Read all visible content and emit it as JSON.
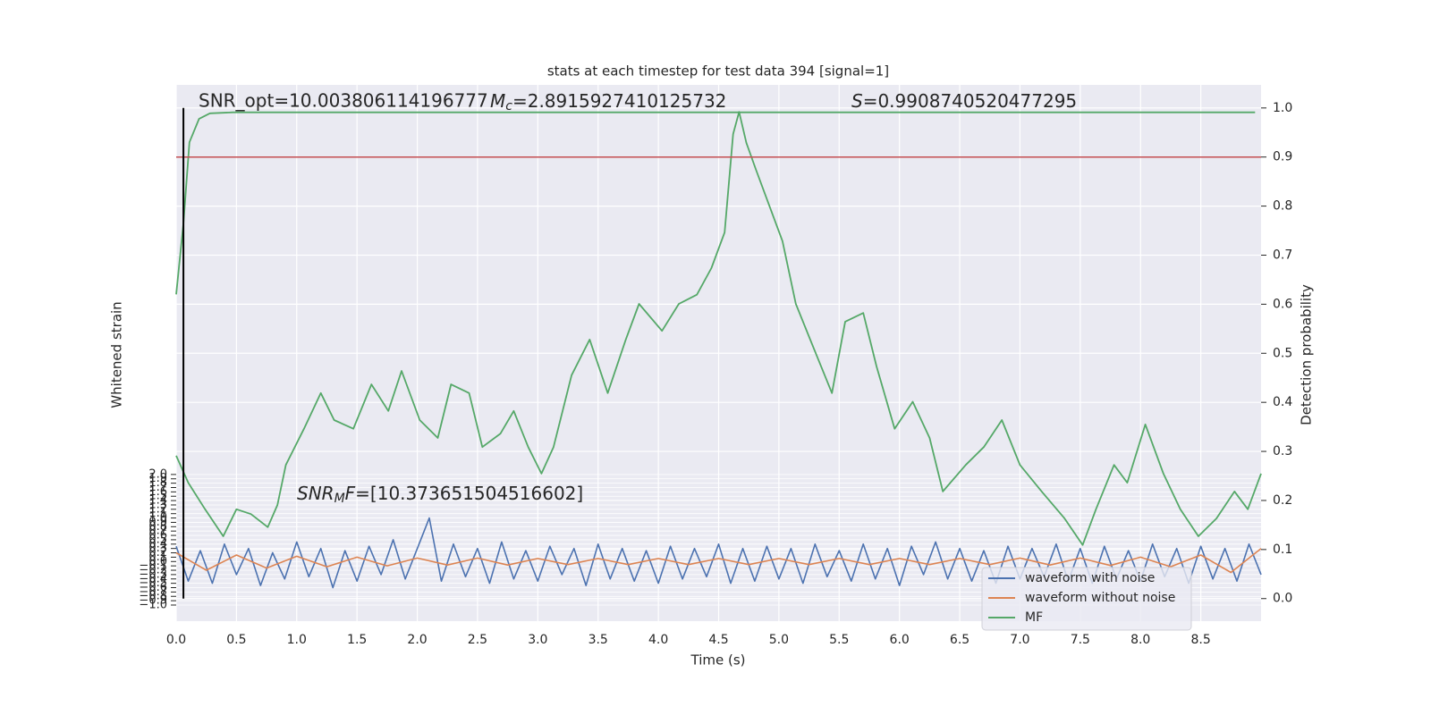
{
  "chart_data": {
    "type": "line",
    "title": "stats at each timestep for test data 394 [signal=1]",
    "xlabel": "Time (s)",
    "ylabel": "Whitened strain",
    "y2label": "Detection probability",
    "annotations": [
      {
        "text": "SNR_opt=10.003806114196777"
      },
      {
        "symbol": "M",
        "sub": "c",
        "text": "=2.8915927410125732"
      },
      {
        "symbol": "S",
        "text": "=0.9908740520477295"
      },
      {
        "symbol": "SNR",
        "sub": "M",
        "symbol2": "F",
        "text": "=[10.373651504516602]"
      }
    ],
    "xlim": [
      0,
      9.0
    ],
    "xticks": [
      {
        "value": 0,
        "label": "0.0"
      },
      0.5,
      {
        "value": 1,
        "label": "1.0"
      },
      1.5,
      {
        "value": 2,
        "label": "2.0"
      },
      2.5,
      {
        "value": 3,
        "label": "3.0"
      },
      3.5,
      {
        "value": 4,
        "label": "4.0"
      },
      4.5,
      {
        "value": 5,
        "label": "5.0"
      },
      5.5,
      {
        "value": 6,
        "label": "6.0"
      },
      6.5,
      {
        "value": 7,
        "label": "7.0"
      },
      7.5,
      {
        "value": 8,
        "label": "8.0"
      },
      8.5
    ],
    "ylim": [
      -1.37,
      10.95
    ],
    "yticks": [
      {
        "value": -1,
        "label": "−1.0"
      },
      {
        "value": -0.9,
        "label": "−0.9"
      },
      {
        "value": -0.8,
        "label": "−0.8"
      },
      {
        "value": -0.7,
        "label": "−0.7"
      },
      {
        "value": -0.6,
        "label": "−0.6"
      },
      {
        "value": -0.5,
        "label": "−0.5"
      },
      {
        "value": -0.4,
        "label": "−0.4"
      },
      {
        "value": -0.3,
        "label": "−0.3"
      },
      {
        "value": -0.2,
        "label": "−0.2"
      },
      {
        "value": -0.1,
        "label": "−0.1"
      },
      {
        "value": 0,
        "label": "0.0"
      },
      0.1,
      0.2,
      0.3,
      0.4,
      0.5,
      0.6,
      0.7,
      0.8,
      0.9,
      {
        "value": 1,
        "label": "1.0"
      },
      1.1,
      1.2,
      1.3,
      1.4,
      1.5,
      1.6,
      1.7,
      1.8,
      1.9,
      {
        "value": 2,
        "label": "2.0"
      }
    ],
    "y2lim": [
      -0.046,
      1.047
    ],
    "y2ticks": [
      {
        "value": 0,
        "label": "0.0"
      },
      0.1,
      0.2,
      0.3,
      0.4,
      0.5,
      0.6,
      0.7,
      0.8,
      0.9,
      {
        "value": 1,
        "label": "1.0"
      }
    ],
    "grid": true,
    "legend": "lower right",
    "threshold": {
      "value": 0.9,
      "color": "#c44e52"
    },
    "vline": {
      "x": 0.06,
      "color": "#000000"
    },
    "series": [
      {
        "name": "waveform with noise",
        "color": "#4c72b0",
        "x": [
          0,
          0.1,
          0.2,
          0.3,
          0.4,
          0.5,
          0.6,
          0.7,
          0.8,
          0.9,
          1.0,
          1.1,
          1.2,
          1.3,
          1.4,
          1.5,
          1.6,
          1.7,
          1.8,
          1.9,
          2.0,
          2.1,
          2.2,
          2.3,
          2.4,
          2.5,
          2.6,
          2.7,
          2.8,
          2.9,
          3.0,
          3.1,
          3.2,
          3.3,
          3.4,
          3.5,
          3.6,
          3.7,
          3.8,
          3.9,
          4.0,
          4.1,
          4.2,
          4.3,
          4.4,
          4.5,
          4.6,
          4.7,
          4.8,
          4.9,
          5.0,
          5.1,
          5.2,
          5.3,
          5.4,
          5.5,
          5.6,
          5.7,
          5.8,
          5.9,
          6.0,
          6.1,
          6.2,
          6.3,
          6.4,
          6.5,
          6.6,
          6.7,
          6.8,
          6.9,
          7.0,
          7.1,
          7.2,
          7.3,
          7.4,
          7.5,
          7.6,
          7.7,
          7.8,
          7.9,
          8.0,
          8.1,
          8.2,
          8.3,
          8.4,
          8.5,
          8.6,
          8.7,
          8.8,
          8.9,
          9.0
        ],
        "values": [
          0.35,
          -0.45,
          0.25,
          -0.5,
          0.4,
          -0.3,
          0.3,
          -0.55,
          0.2,
          -0.4,
          0.45,
          -0.35,
          0.3,
          -0.6,
          0.25,
          -0.45,
          0.35,
          -0.3,
          0.5,
          -0.4,
          0.3,
          1.0,
          -0.45,
          0.4,
          -0.35,
          0.3,
          -0.5,
          0.45,
          -0.4,
          0.25,
          -0.45,
          0.35,
          -0.3,
          0.3,
          -0.55,
          0.4,
          -0.4,
          0.3,
          -0.45,
          0.25,
          -0.5,
          0.35,
          -0.4,
          0.3,
          -0.35,
          0.4,
          -0.5,
          0.3,
          -0.45,
          0.35,
          -0.4,
          0.3,
          -0.5,
          0.4,
          -0.35,
          0.25,
          -0.45,
          0.4,
          -0.4,
          0.3,
          -0.55,
          0.35,
          -0.3,
          0.45,
          -0.4,
          0.3,
          -0.45,
          0.25,
          -0.5,
          0.35,
          -0.4,
          0.3,
          -0.35,
          0.4,
          -0.45,
          0.3,
          -0.5,
          0.35,
          -0.4,
          0.25,
          -0.45,
          0.4,
          -0.35,
          0.3,
          -0.5,
          0.35,
          -0.4,
          0.3,
          -0.45,
          0.4,
          -0.3
        ]
      },
      {
        "name": "waveform without noise",
        "color": "#dd8452",
        "x": [
          0,
          0.25,
          0.5,
          0.75,
          1.0,
          1.25,
          1.5,
          1.75,
          2.0,
          2.25,
          2.5,
          2.75,
          3.0,
          3.25,
          3.5,
          3.75,
          4.0,
          4.25,
          4.5,
          4.75,
          5.0,
          5.25,
          5.5,
          5.75,
          6.0,
          6.25,
          6.5,
          6.75,
          7.0,
          7.25,
          7.5,
          7.75,
          8.0,
          8.25,
          8.5,
          8.75,
          9.0
        ],
        "values": [
          0.2,
          -0.2,
          0.15,
          -0.15,
          0.12,
          -0.12,
          0.1,
          -0.1,
          0.08,
          -0.08,
          0.08,
          -0.08,
          0.07,
          -0.07,
          0.07,
          -0.07,
          0.07,
          -0.07,
          0.07,
          -0.07,
          0.07,
          -0.07,
          0.07,
          -0.07,
          0.07,
          -0.07,
          0.07,
          -0.07,
          0.08,
          -0.08,
          0.08,
          -0.09,
          0.1,
          -0.12,
          0.15,
          -0.25,
          0.3
        ]
      },
      {
        "name": "MF",
        "color": "#55a868",
        "x": [
          0,
          0.1,
          0.24,
          0.39,
          0.5,
          0.62,
          0.76,
          0.84,
          0.91,
          1.06,
          1.2,
          1.31,
          1.47,
          1.62,
          1.76,
          1.87,
          2.02,
          2.17,
          2.28,
          2.43,
          2.54,
          2.69,
          2.8,
          2.92,
          3.03,
          3.13,
          3.28,
          3.43,
          3.58,
          3.73,
          3.84,
          4.03,
          4.17,
          4.32,
          4.44,
          4.55,
          4.62,
          4.67,
          4.73,
          4.81,
          4.92,
          5.03,
          5.14,
          5.29,
          5.44,
          5.55,
          5.7,
          5.81,
          5.96,
          6.11,
          6.25,
          6.36,
          6.55,
          6.7,
          6.85,
          7.0,
          7.18,
          7.37,
          7.52,
          7.63,
          7.78,
          7.89,
          8.04,
          8.19,
          8.33,
          8.48,
          8.63,
          8.78,
          8.89,
          9.0
        ],
        "values": [
          2.43,
          1.81,
          1.2,
          0.58,
          1.2,
          1.09,
          0.79,
          1.3,
          2.22,
          3.05,
          3.87,
          3.25,
          3.05,
          4.07,
          3.46,
          4.38,
          3.25,
          2.84,
          4.07,
          3.87,
          2.63,
          2.94,
          3.46,
          2.63,
          2.02,
          2.63,
          4.28,
          5.1,
          3.87,
          5.1,
          5.92,
          5.3,
          5.92,
          6.13,
          6.74,
          7.56,
          9.82,
          10.33,
          9.62,
          9.0,
          8.18,
          7.36,
          5.92,
          4.89,
          3.87,
          5.51,
          5.71,
          4.48,
          3.05,
          3.67,
          2.84,
          1.61,
          2.22,
          2.63,
          3.25,
          2.22,
          1.61,
          0.99,
          0.38,
          1.2,
          2.22,
          1.81,
          3.15,
          2.02,
          1.2,
          0.58,
          0.99,
          1.61,
          1.2,
          2.02
        ]
      }
    ],
    "probability": {
      "color": "#55a868",
      "axis": "y2",
      "x": [
        0,
        0.06,
        0.11,
        0.19,
        0.28,
        0.47,
        8.95
      ],
      "values": [
        0.62,
        0.765,
        0.93,
        0.978,
        0.989,
        0.991,
        0.991
      ]
    }
  }
}
